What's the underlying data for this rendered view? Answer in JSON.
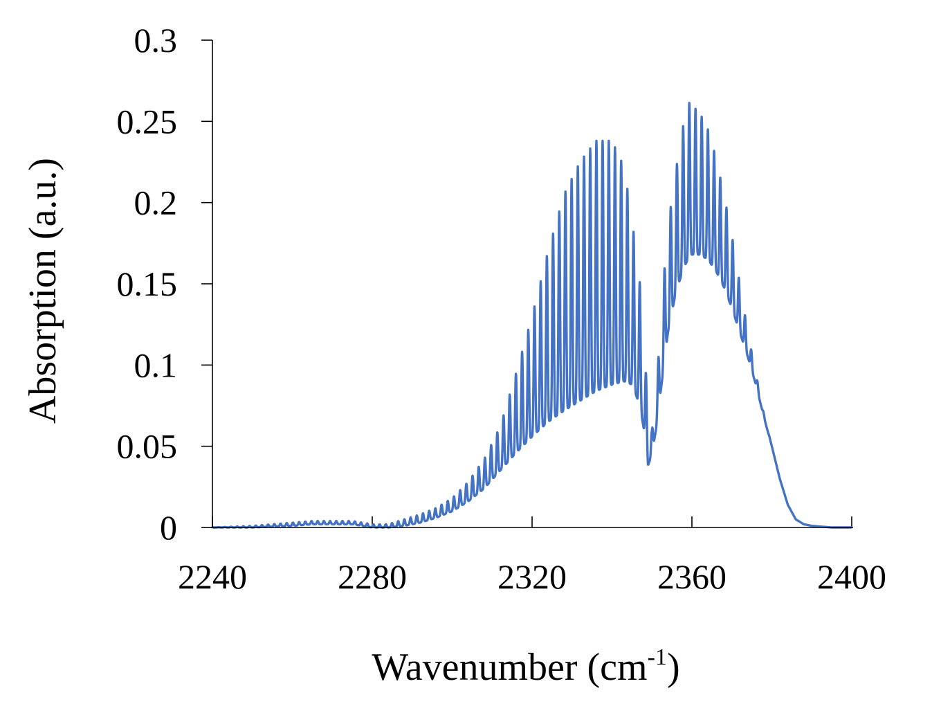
{
  "chart_data": {
    "type": "line",
    "title": "",
    "xlabel": "Wavenumber (cm",
    "xlabel_superscript": "-1",
    "xlabel_suffix": ")",
    "ylabel": "Absorption (a.u.)",
    "xlim": [
      2240,
      2400
    ],
    "ylim": [
      0,
      0.3
    ],
    "xticks": [
      2240,
      2280,
      2320,
      2360,
      2400
    ],
    "xtick_labels": [
      "2240",
      "2280",
      "2320",
      "2360",
      "2400"
    ],
    "yticks": [
      0,
      0.05,
      0.1,
      0.15,
      0.2,
      0.25,
      0.3
    ],
    "ytick_labels": [
      "0",
      "0.05",
      "0.1",
      "0.15",
      "0.2",
      "0.25",
      "0.3"
    ],
    "grid": false,
    "legend": "none",
    "series": [
      {
        "color": "#4472c4",
        "line_spacing_cm-1": 1.55,
        "x": [
          2240,
          2250,
          2260,
          2265,
          2270,
          2275,
          2280,
          2284,
          2288,
          2292,
          2296,
          2300,
          2304,
          2308,
          2312,
          2316,
          2320,
          2324,
          2328,
          2332,
          2336,
          2340,
          2343,
          2345,
          2347,
          2348,
          2349,
          2350,
          2351,
          2352,
          2353,
          2354,
          2356,
          2358,
          2359,
          2360,
          2362,
          2364,
          2366,
          2368,
          2370,
          2372,
          2374,
          2376,
          2378,
          2380,
          2382,
          2384,
          2386,
          2388,
          2390,
          2395,
          2400
        ],
        "upper": [
          0,
          0.001,
          0.003,
          0.004,
          0.004,
          0.004,
          0.002,
          0.002,
          0.005,
          0.008,
          0.012,
          0.018,
          0.028,
          0.042,
          0.062,
          0.095,
          0.13,
          0.17,
          0.205,
          0.225,
          0.238,
          0.238,
          0.222,
          0.19,
          0.15,
          0.11,
          0.08,
          0.06,
          0.08,
          0.12,
          0.155,
          0.185,
          0.22,
          0.25,
          0.262,
          0.26,
          0.255,
          0.245,
          0.228,
          0.205,
          0.18,
          0.15,
          0.12,
          0.095,
          0.07,
          0.05,
          0.03,
          0.014,
          0.005,
          0.002,
          0.001,
          0,
          0
        ],
        "lower": [
          0,
          0,
          0.001,
          0.002,
          0.002,
          0.002,
          0,
          0,
          0.001,
          0.003,
          0.006,
          0.01,
          0.016,
          0.024,
          0.035,
          0.046,
          0.056,
          0.065,
          0.072,
          0.078,
          0.084,
          0.088,
          0.09,
          0.088,
          0.075,
          0.06,
          0.038,
          0.045,
          0.06,
          0.08,
          0.1,
          0.12,
          0.145,
          0.16,
          0.165,
          0.168,
          0.168,
          0.165,
          0.158,
          0.148,
          0.135,
          0.12,
          0.105,
          0.088,
          0.068,
          0.05,
          0.03,
          0.014,
          0.005,
          0.002,
          0.001,
          0,
          0
        ]
      }
    ]
  }
}
